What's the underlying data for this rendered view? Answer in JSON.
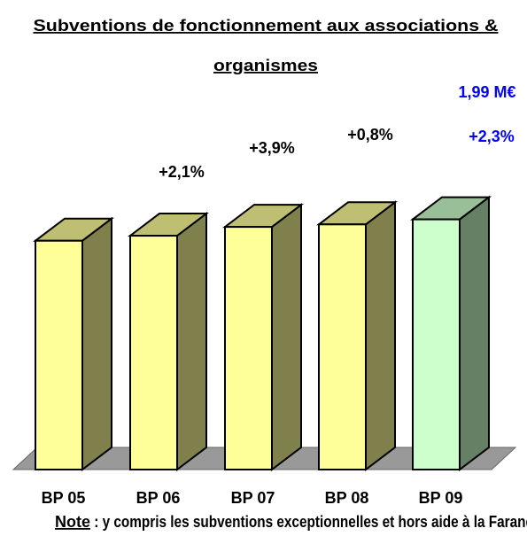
{
  "chart_data": {
    "type": "bar3d",
    "title": "Subventions de fonctionnement aux associations & organismes",
    "categories": [
      "BP 05",
      "BP 06",
      "BP 07",
      "BP 08",
      "BP 09"
    ],
    "values": [
      1.82,
      1.86,
      1.93,
      1.95,
      1.99
    ],
    "value_labels": [
      null,
      null,
      null,
      null,
      "1,99 M€"
    ],
    "growth_labels": [
      null,
      "+2,1%",
      "+3,9%",
      "+0,8%",
      "+2,3%"
    ],
    "colors": [
      "#ffff99",
      "#ffff99",
      "#ffff99",
      "#ffff99",
      "#ccffcc"
    ],
    "ylim": [
      0,
      2.1
    ],
    "note_label": "Note",
    "note": " : y compris les subventions exceptionnelles et hors aide à la Farandole"
  }
}
